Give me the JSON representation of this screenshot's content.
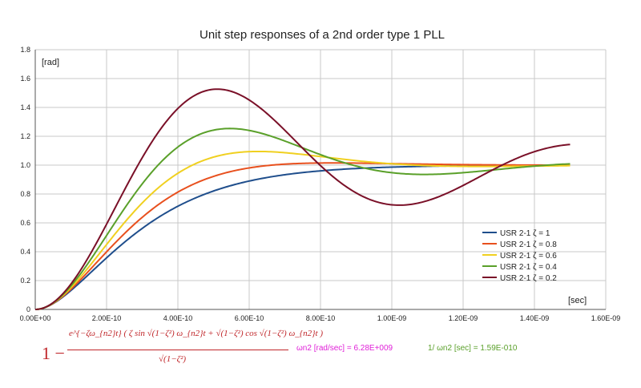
{
  "chart_data": {
    "type": "line",
    "title": "Unit step responses of a 2nd order type 1 PLL",
    "ylabel": "[rad]",
    "xlabel": "[sec]",
    "xlim": [
      0,
      1.6e-09
    ],
    "ylim": [
      0,
      1.8
    ],
    "grid": true,
    "legend_position": "right",
    "xticks": [
      "0.00E+00",
      "2.00E-10",
      "4.00E-10",
      "6.00E-10",
      "8.00E-10",
      "1.00E-09",
      "1.20E-09",
      "1.40E-09",
      "1.60E-09"
    ],
    "yticks": [
      "0",
      "0.2",
      "0.4",
      "0.6",
      "0.8",
      "1.0",
      "1.2",
      "1.4",
      "1.6",
      "1.8"
    ],
    "omega_n2": 6280000000.0,
    "t_end": 1.5e-09,
    "series": [
      {
        "name": "USR 2-1 ζ = 1",
        "zeta": 1.0,
        "color": "#1f4e8c"
      },
      {
        "name": "USR 2-1 ζ = 0.8",
        "zeta": 0.8,
        "color": "#e8501e"
      },
      {
        "name": "USR 2-1 ζ = 0.6",
        "zeta": 0.6,
        "color": "#f0d020"
      },
      {
        "name": "USR 2-1 ζ = 0.4",
        "zeta": 0.4,
        "color": "#5aa02a"
      },
      {
        "name": "USR 2-1 ζ = 0.2",
        "zeta": 0.2,
        "color": "#7a1028"
      }
    ]
  },
  "formula": {
    "one_minus": "1 −",
    "numerator": "e^{−ζω_{n2}t} ( ζ sin √(1−ζ²) ω_{n2}t + √(1−ζ²) cos √(1−ζ²) ω_{n2}t )",
    "denominator": "√(1−ζ²)"
  },
  "annotations": {
    "omega": "ωn2 [rad/sec] = 6.28E+009",
    "inverse": "1/ ωn2 [sec] = 1.59E-010"
  }
}
